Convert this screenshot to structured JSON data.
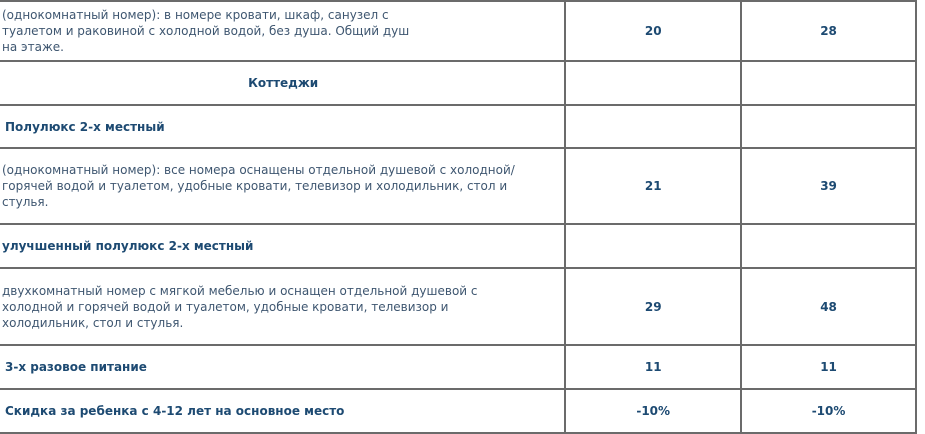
{
  "table": {
    "rows": [
      {
        "type": "desc",
        "text": "(однокомнатный номер): в номере кровати, шкаф, санузел с туалетом и раковиной с холодной водой, без душа. Общий душ на этаже.",
        "col1": "20",
        "col2": "28"
      },
      {
        "type": "section",
        "text": "Коттеджи",
        "col1": "",
        "col2": ""
      },
      {
        "type": "head",
        "text": "Полулюкс 2-х местный",
        "col1": "",
        "col2": ""
      },
      {
        "type": "desc",
        "text": "(однокомнатный номер): все номера оснащены отдельной душевой с холодной/ горячей водой и туалетом, удобные кровати, телевизор и холодильник, стол и стулья.",
        "col1": "21",
        "col2": "39"
      },
      {
        "type": "head",
        "text": "улучшенный полулюкс 2-х местный",
        "col1": "",
        "col2": ""
      },
      {
        "type": "desc",
        "text": "двухкомнатный номер с мягкой мебелью и оснащен отдельной душевой с холодной и горячей водой и туалетом, удобные кровати, телевизор и холодильник, стол и стулья.",
        "col1": "29",
        "col2": "48"
      },
      {
        "type": "head",
        "text": "3-х разовое питание",
        "col1": "11",
        "col2": "11"
      },
      {
        "type": "head",
        "text": "Скидка за ребенка с 4-12 лет на основное место",
        "col1": "-10%",
        "col2": "-10%"
      }
    ]
  },
  "colors": {
    "text": "#3e5670",
    "heading": "#1d4a72",
    "border": "#6b6b6b"
  }
}
